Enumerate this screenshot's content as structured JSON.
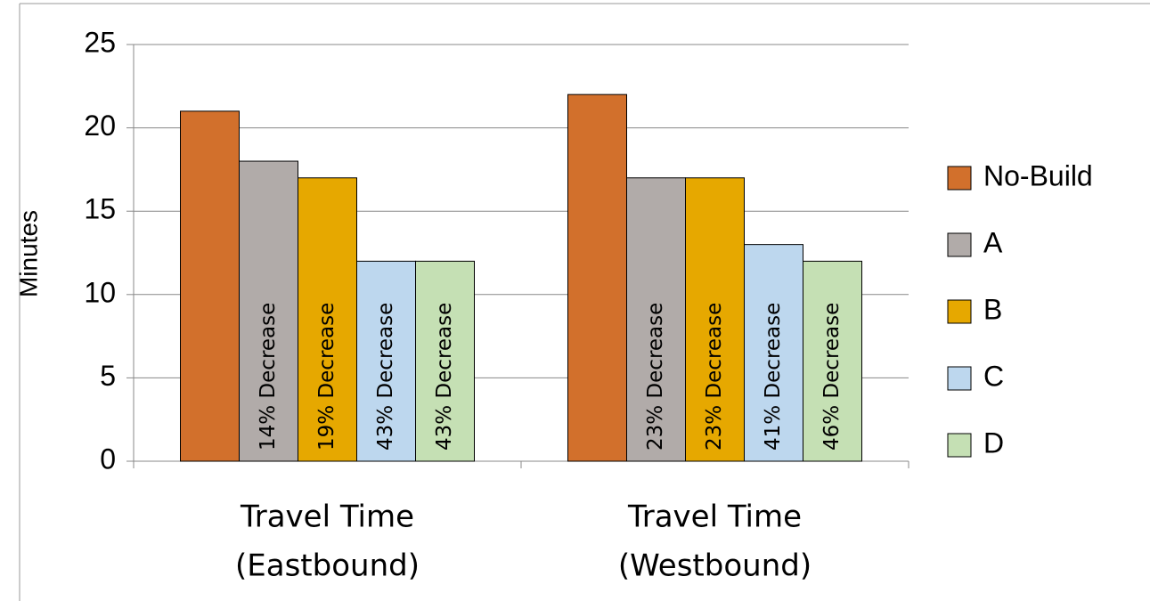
{
  "chart_data": {
    "type": "bar",
    "y_label": "Minutes",
    "categories": [
      [
        "Travel Time",
        "(Eastbound)"
      ],
      [
        "Travel Time",
        "(Westbound)"
      ]
    ],
    "series": [
      {
        "name": "No-Build",
        "color": "#d2702c",
        "values": [
          21,
          22
        ]
      },
      {
        "name": "A",
        "color": "#b1aba9",
        "values": [
          18,
          17
        ],
        "decrease_labels": [
          "14% Decrease",
          "23% Decrease"
        ]
      },
      {
        "name": "B",
        "color": "#e6a800",
        "values": [
          17,
          17
        ],
        "decrease_labels": [
          "19% Decrease",
          "23% Decrease"
        ]
      },
      {
        "name": "C",
        "color": "#bdd7ee",
        "values": [
          12,
          13
        ],
        "decrease_labels": [
          "43% Decrease",
          "41% Decrease"
        ]
      },
      {
        "name": "D",
        "color": "#c5e0b4",
        "values": [
          12,
          12
        ],
        "decrease_labels": [
          "43% Decrease",
          "46% Decrease"
        ]
      }
    ],
    "ylim": [
      0,
      25
    ],
    "yticks": [
      0,
      5,
      10,
      15,
      20,
      25
    ],
    "grid": true,
    "legend": "right"
  }
}
